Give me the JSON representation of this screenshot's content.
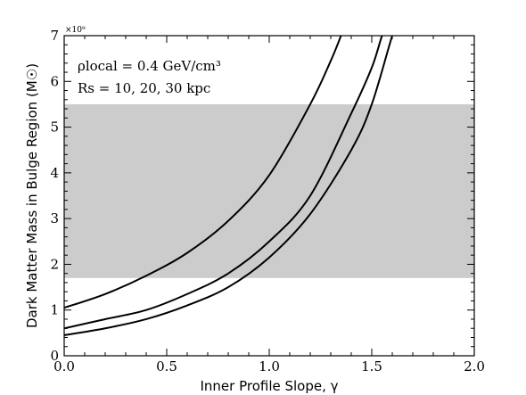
{
  "chart_data": {
    "type": "line",
    "xlabel": "Inner Profile Slope, γ",
    "ylabel": "Dark Matter Mass in Bulge Region (M☉)",
    "xlim": [
      0.0,
      2.0
    ],
    "ylim": [
      0,
      7
    ],
    "y_multiplier": "×10⁹",
    "x_ticks": [
      "0.0",
      "0.5",
      "1.0",
      "1.5",
      "2.0"
    ],
    "y_ticks": [
      "0",
      "1",
      "2",
      "3",
      "4",
      "5",
      "6",
      "7"
    ],
    "grid": false,
    "band": {
      "y_min": 1.7,
      "y_max": 5.5,
      "color": "#cccccc"
    },
    "annotations": [
      "ρlocal = 0.4 GeV/cm³",
      "Rs = 10, 20, 30 kpc"
    ],
    "series": [
      {
        "x": [
          0.0,
          0.2,
          0.4,
          0.6,
          0.8,
          1.0,
          1.2,
          1.3,
          1.35,
          1.4
        ],
        "y": [
          1.05,
          1.35,
          1.75,
          2.25,
          2.95,
          3.95,
          5.5,
          6.45,
          7.0,
          7.6
        ]
      },
      {
        "x": [
          0.0,
          0.2,
          0.4,
          0.6,
          0.8,
          1.0,
          1.2,
          1.4,
          1.5,
          1.55,
          1.6
        ],
        "y": [
          0.6,
          0.8,
          1.0,
          1.35,
          1.8,
          2.5,
          3.5,
          5.3,
          6.3,
          7.0,
          7.6
        ]
      },
      {
        "x": [
          0.0,
          0.2,
          0.4,
          0.6,
          0.8,
          1.0,
          1.2,
          1.4,
          1.5,
          1.6,
          1.65
        ],
        "y": [
          0.45,
          0.6,
          0.8,
          1.1,
          1.5,
          2.15,
          3.1,
          4.5,
          5.5,
          7.0,
          7.6
        ]
      }
    ],
    "line_color": "#000000"
  }
}
